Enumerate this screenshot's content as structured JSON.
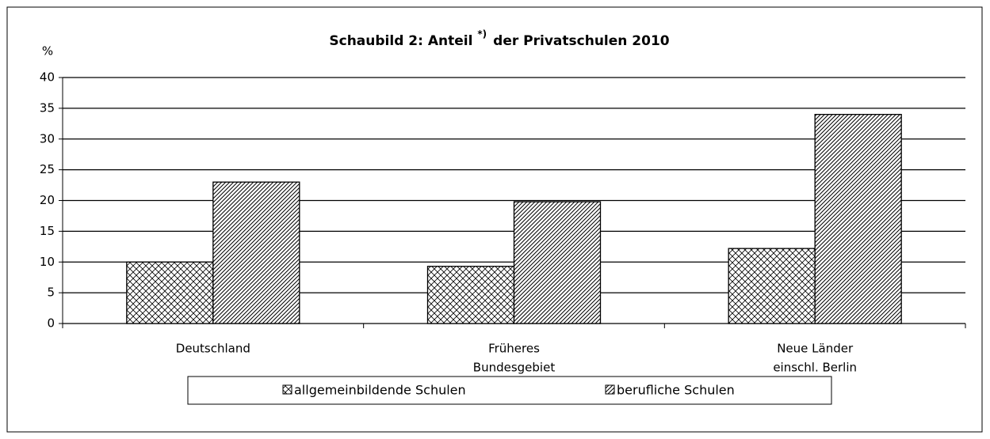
{
  "chart_data": {
    "type": "bar",
    "title_parts": [
      "Schaubild 2: Anteil",
      "*)",
      "der Privatschulen 2010"
    ],
    "y_label": "%",
    "categories": [
      [
        "Deutschland"
      ],
      [
        "Früheres",
        "Bundesgebiet"
      ],
      [
        "Neue Länder",
        "einschl. Berlin"
      ]
    ],
    "series": [
      {
        "name": "allgemeinbildende Schulen",
        "color": "#000000",
        "pattern": "crosshatch",
        "values": [
          10.0,
          9.3,
          12.2
        ]
      },
      {
        "name": "berufliche Schulen",
        "color": "#000000",
        "pattern": "diagonal",
        "values": [
          23.0,
          19.8,
          34.0
        ]
      }
    ],
    "ylim": [
      0,
      40
    ],
    "yticks": [
      0,
      5,
      10,
      15,
      20,
      25,
      30,
      35,
      40
    ],
    "grid": true,
    "legend": "bottom"
  }
}
